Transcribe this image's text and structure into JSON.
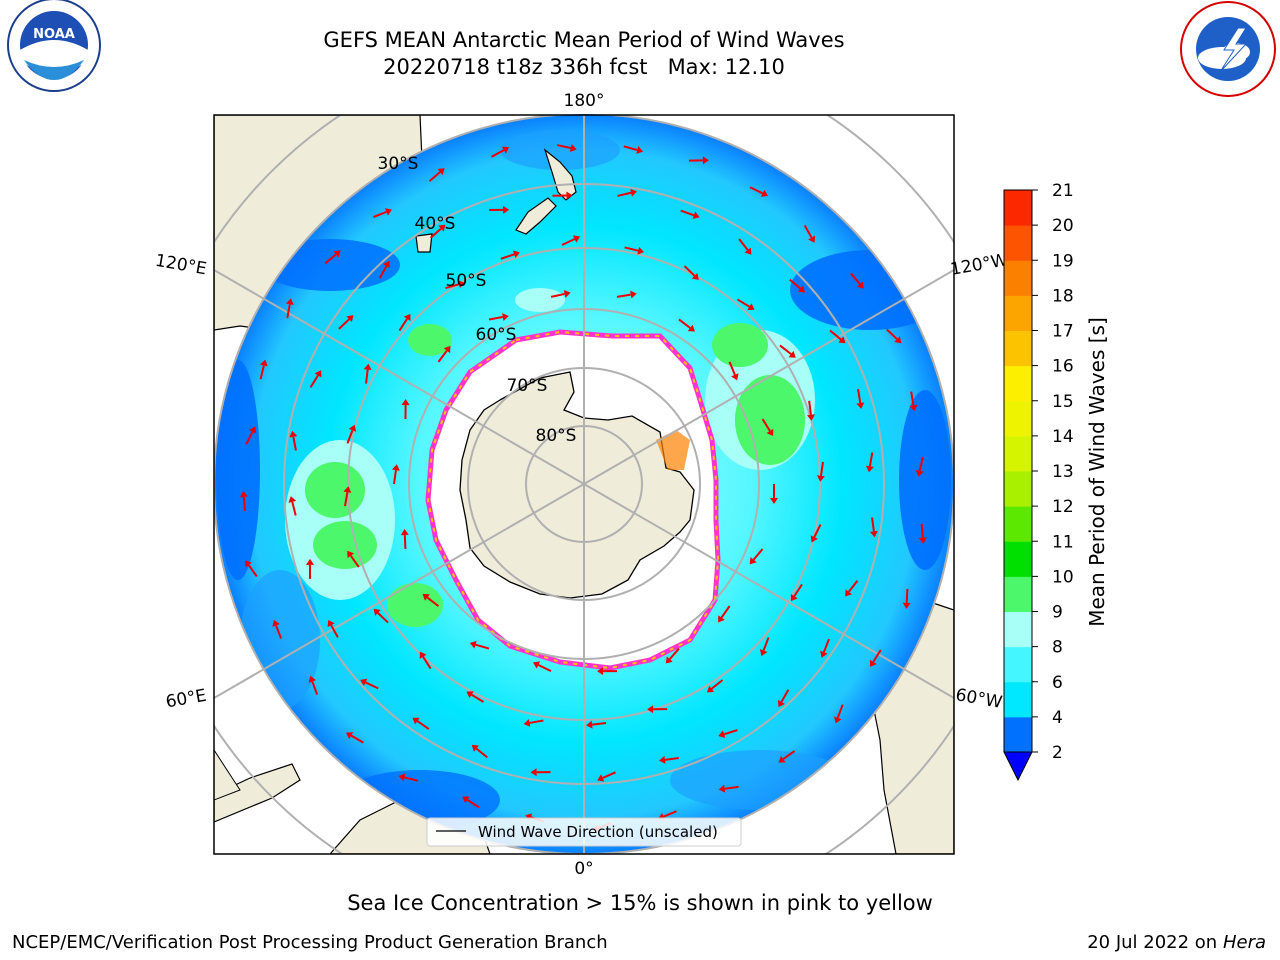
{
  "header": {
    "title_line1": "GEFS MEAN Antarctic Mean Period of Wind Waves",
    "title_line2": "20220718 t18z 336h fcst   Max: 12.10"
  },
  "logos": {
    "left": {
      "name": "noaa-logo",
      "text": "NOAA",
      "ring_text": "NATIONAL OCEANIC AND ATMOSPHERIC ADMINISTRATION"
    },
    "right": {
      "name": "nws-logo",
      "ring_text": "NATIONAL WEATHER SERVICE"
    }
  },
  "map": {
    "projection": "south-polar-stereographic",
    "longitude_labels": {
      "top": "180°",
      "bottom": "0°",
      "left_upper": "120°E",
      "left_lower": "60°E",
      "right_upper": "120°W",
      "right_lower": "60°W"
    },
    "latitude_labels": [
      "30°S",
      "40°S",
      "50°S",
      "60°S",
      "70°S",
      "80°S"
    ],
    "legend_label": "Wind Wave Direction (unscaled)"
  },
  "colorbar": {
    "title": "Mean Period of Wind Waves [s]",
    "ticks": [
      "2",
      "4",
      "6",
      "8",
      "9",
      "10",
      "11",
      "12",
      "13",
      "14",
      "15",
      "16",
      "17",
      "18",
      "19",
      "20",
      "21"
    ],
    "colors": [
      "#0070ff",
      "#00e8ff",
      "#44f6ff",
      "#a8fff8",
      "#4cf76c",
      "#00e000",
      "#5ce800",
      "#a8f000",
      "#d4f400",
      "#eef400",
      "#fcf000",
      "#fcc400",
      "#fca400",
      "#fc8000",
      "#fc5400",
      "#fc2800",
      "#ff0000"
    ],
    "extend_color": "#0000ff"
  },
  "footer": {
    "ice_note": "Sea Ice Concentration > 15% is shown in pink to yellow",
    "left": "NCEP/EMC/Verification Post Processing Product Generation Branch",
    "right_date": "20 Jul 2022 on",
    "right_host": "Hera"
  },
  "colors": {
    "land": "#efedda",
    "ocean_dark": "#0070ff",
    "ocean_cyan": "#00e8ff",
    "ocean_light": "#66fbff",
    "ice": "#ffffff",
    "ice_edge": "#ff33cc",
    "arrow": "#ee0000",
    "grid": "#b0b0b0"
  }
}
